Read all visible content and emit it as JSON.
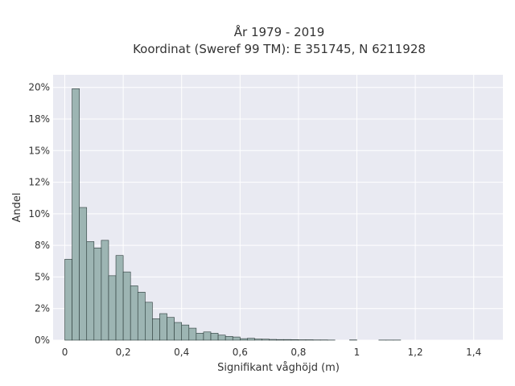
{
  "chart_data": {
    "type": "bar",
    "title": "År 1979 - 2019",
    "subtitle": "Koordinat (Sweref 99 TM): E 351745, N 6211928",
    "xlabel": "Signifikant våghöjd (m)",
    "ylabel": "Andel",
    "xlim": [
      -0.04,
      1.5
    ],
    "ylim": [
      0,
      0.21
    ],
    "x_ticks": [
      {
        "value": 0,
        "label": "0"
      },
      {
        "value": 0.2,
        "label": "0,2"
      },
      {
        "value": 0.4,
        "label": "0,4"
      },
      {
        "value": 0.6,
        "label": "0,6"
      },
      {
        "value": 0.8,
        "label": "0,8"
      },
      {
        "value": 1.0,
        "label": "1"
      },
      {
        "value": 1.2,
        "label": "1,2"
      },
      {
        "value": 1.4,
        "label": "1,4"
      }
    ],
    "y_ticks": [
      {
        "value": 0,
        "label": "0%"
      },
      {
        "value": 0.025,
        "label": "2%"
      },
      {
        "value": 0.05,
        "label": "5%"
      },
      {
        "value": 0.075,
        "label": "8%"
      },
      {
        "value": 0.1,
        "label": "10%"
      },
      {
        "value": 0.125,
        "label": "12%"
      },
      {
        "value": 0.15,
        "label": "15%"
      },
      {
        "value": 0.175,
        "label": "18%"
      },
      {
        "value": 0.2,
        "label": "20%"
      }
    ],
    "grid": true,
    "bin_width": 0.025,
    "bins_start": [
      0,
      0.025,
      0.05,
      0.075,
      0.1,
      0.125,
      0.15,
      0.175,
      0.2,
      0.225,
      0.25,
      0.275,
      0.3,
      0.325,
      0.35,
      0.375,
      0.4,
      0.425,
      0.45,
      0.475,
      0.5,
      0.525,
      0.55,
      0.575,
      0.6,
      0.625,
      0.65,
      0.675,
      0.7,
      0.725,
      0.75,
      0.775,
      0.8,
      0.825,
      0.85,
      0.875,
      0.9,
      0.925,
      0.95,
      0.975,
      1.0,
      1.025,
      1.05,
      1.075,
      1.1,
      1.125
    ],
    "values": [
      0.064,
      0.199,
      0.105,
      0.078,
      0.073,
      0.079,
      0.051,
      0.067,
      0.054,
      0.043,
      0.038,
      0.03,
      0.017,
      0.021,
      0.018,
      0.014,
      0.012,
      0.0095,
      0.0055,
      0.0065,
      0.0055,
      0.004,
      0.003,
      0.0025,
      0.0012,
      0.0015,
      0.0009,
      0.0008,
      0.0006,
      0.0005,
      0.0005,
      0.0004,
      0.0003,
      0.0003,
      0.0002,
      0.0002,
      0.0001,
      0,
      0,
      0.0002,
      0,
      0,
      0,
      0.0001,
      0.0001,
      0.0001
    ],
    "colors": {
      "plot_bg": "#e9eaf2",
      "bar_fill": "#9db5b3",
      "bar_edge": "#2b3a39",
      "grid": "#ffffff"
    }
  }
}
